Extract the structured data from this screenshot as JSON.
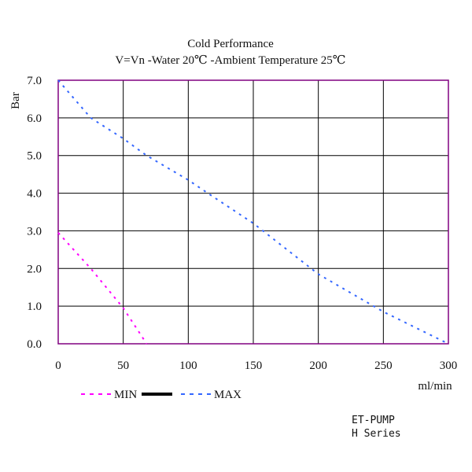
{
  "chart_data": {
    "type": "line",
    "title": "Cold Performance",
    "subtitle": "V=Vn -Water 20℃ -Ambient Temperature 25℃",
    "xlabel": "ml/min",
    "ylabel": "Bar",
    "xlim": [
      0,
      300
    ],
    "ylim": [
      0,
      7
    ],
    "xticks": [
      "0",
      "50",
      "100",
      "150",
      "200",
      "250",
      "300"
    ],
    "yticks": [
      "0.0",
      "1.0",
      "2.0",
      "3.0",
      "4.0",
      "5.0",
      "6.0",
      "7.0"
    ],
    "grid": true,
    "legend_placement": "bottom-left",
    "legend": [
      "MIN",
      "MAX"
    ],
    "series": [
      {
        "name": "MIN",
        "color": "#ff00ff",
        "x": [
          0,
          25,
          50,
          68
        ],
        "y": [
          2.95,
          2.0,
          0.95,
          0
        ]
      },
      {
        "name": "MAX",
        "color": "#3366ff",
        "x": [
          0,
          25,
          50,
          68,
          100,
          115,
          150,
          200,
          250,
          300
        ],
        "y": [
          7.0,
          6.0,
          5.45,
          5.0,
          4.35,
          4.0,
          3.2,
          1.85,
          0.85,
          0
        ]
      }
    ],
    "border_color": "#800080"
  },
  "footer": {
    "brand": "ET-PUMP",
    "series": "H Series"
  }
}
